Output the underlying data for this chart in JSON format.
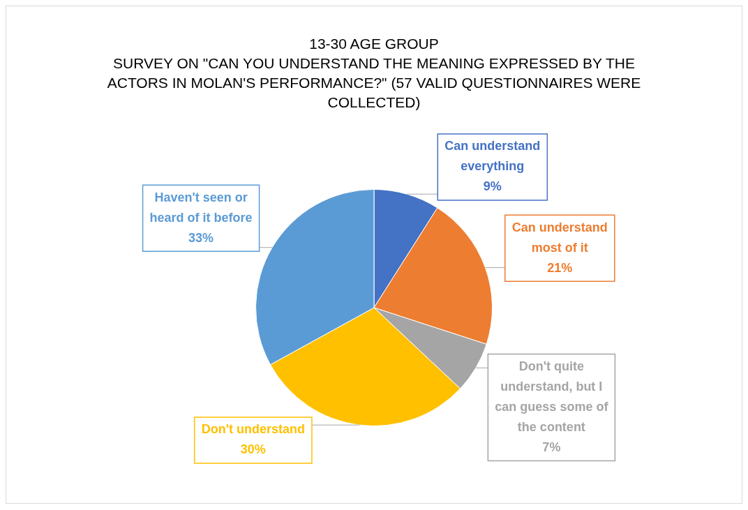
{
  "chart_data": {
    "type": "pie",
    "title": "13-30 AGE GROUP",
    "subtitle": "SURVEY ON \"CAN YOU UNDERSTAND THE MEANING EXPRESSED BY THE ACTORS IN MOLAN'S PERFORMANCE?\" (57 VALID QUESTIONNAIRES WERE COLLECTED)",
    "categories": [
      "Can understand everything",
      "Can understand most of it",
      "Don't quite understand, but I can guess some of the content",
      "Don't understand",
      "Haven't seen or heard of it before"
    ],
    "values": [
      9,
      21,
      7,
      30,
      33
    ],
    "value_labels": [
      "9%",
      "21%",
      "7%",
      "30%",
      "33%"
    ],
    "colors": [
      "#4472c4",
      "#ed7d31",
      "#a5a5a5",
      "#ffc000",
      "#5b9bd5"
    ],
    "legend": false
  }
}
